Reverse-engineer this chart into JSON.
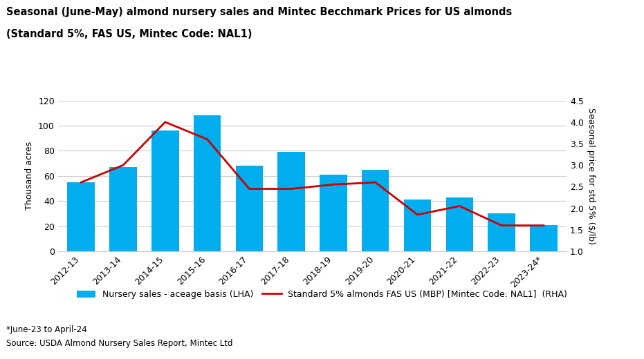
{
  "categories": [
    "2012-13",
    "2013-14",
    "2014-15",
    "2015-16",
    "2016-17",
    "2017-18",
    "2018-19",
    "2019-20",
    "2020-21",
    "2021-22",
    "2022-23",
    "2023-24*"
  ],
  "bar_values": [
    55,
    67,
    96,
    108,
    68,
    79,
    61,
    65,
    41,
    43,
    30,
    21
  ],
  "line_values": [
    2.6,
    3.0,
    4.0,
    3.6,
    2.45,
    2.45,
    2.55,
    2.6,
    1.85,
    2.05,
    1.6,
    1.6
  ],
  "bar_color": "#00AEEF",
  "line_color": "#CC0000",
  "title_line1": "Seasonal (June-May) almond nursery sales and Mintec Becchmark Prices for US almonds",
  "title_line2": "(Standard 5%, FAS US, Mintec Code: NAL1)",
  "ylabel_left": "Thousand acres",
  "ylabel_right": "Seasonal price for std 5% ($/lb)",
  "ylim_left": [
    0,
    120
  ],
  "ylim_right": [
    1.0,
    4.5
  ],
  "yticks_left": [
    0,
    20,
    40,
    60,
    80,
    100,
    120
  ],
  "yticks_right": [
    1.0,
    1.5,
    2.0,
    2.5,
    3.0,
    3.5,
    4.0,
    4.5
  ],
  "legend_bar_label": "Nursery sales - aceage basis (LHA)",
  "legend_line_label": "Standard 5% almonds FAS US (MBP) [Mintec Code: NAL1]  (RHA)",
  "footnote1": "*June-23 to April-24",
  "footnote2": "Source: USDA Almond Nursery Sales Report, Mintec Ltd",
  "background_color": "#FFFFFF",
  "grid_color": "#CCCCCC",
  "title_fontsize": 10.5,
  "axis_label_fontsize": 9,
  "tick_fontsize": 9,
  "legend_fontsize": 9,
  "footnote_fontsize": 8.5
}
